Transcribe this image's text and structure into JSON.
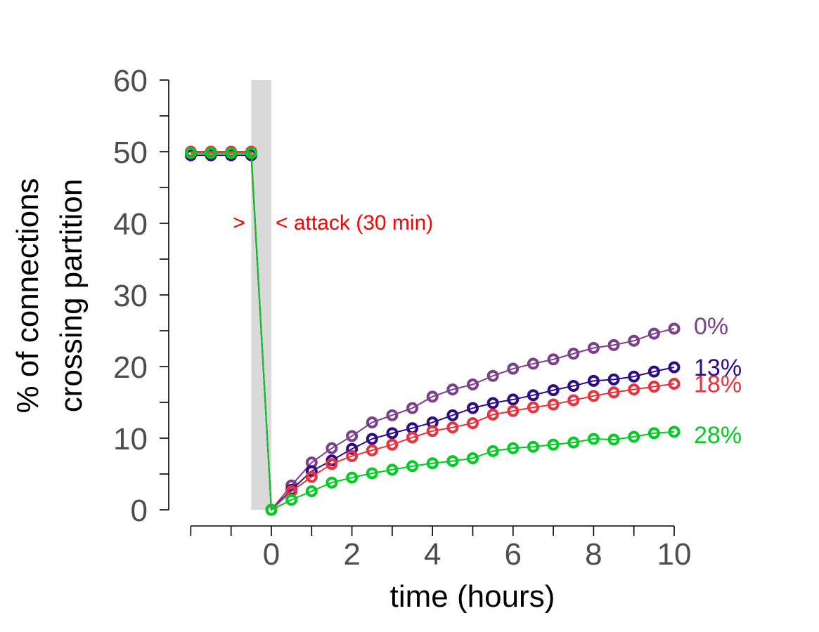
{
  "chart_data": {
    "type": "line",
    "title": "",
    "xlabel": "time (hours)",
    "ylabel_lines": [
      "% of connections",
      "crossing partition"
    ],
    "xlim": [
      -2,
      10
    ],
    "ylim": [
      0,
      60
    ],
    "x_ticks": [
      0,
      2,
      4,
      6,
      8,
      10
    ],
    "y_ticks": [
      0,
      10,
      20,
      30,
      40,
      50,
      60
    ],
    "grid": false,
    "legend": "none (series labelled at line ends)",
    "attack_window": {
      "x_start": -0.5,
      "x_end": 0,
      "color": "#d9d9d9"
    },
    "annotation": {
      "left_mark": ">",
      "text": "< attack (30 min)",
      "color": "#ff0000"
    },
    "x": [
      -2,
      -1.5,
      -1,
      -0.5,
      0,
      0.5,
      1,
      1.5,
      2,
      2.5,
      3,
      3.5,
      4,
      4.5,
      5,
      5.5,
      6,
      6.5,
      7,
      7.5,
      8,
      8.5,
      9,
      9.5,
      10
    ],
    "series": [
      {
        "name": "0%",
        "color": "#7b3f8c",
        "values": [
          49.8,
          49.8,
          49.8,
          49.8,
          0,
          3.4,
          6.6,
          8.6,
          10.3,
          12.2,
          13.2,
          14.2,
          15.8,
          16.8,
          17.5,
          18.7,
          19.7,
          20.4,
          21.0,
          21.8,
          22.6,
          23.0,
          23.6,
          24.6,
          25.3
        ]
      },
      {
        "name": "13%",
        "color": "#2e0a8a",
        "values": [
          49.5,
          49.5,
          49.5,
          49.5,
          0,
          2.8,
          5.4,
          6.9,
          8.5,
          9.9,
          10.7,
          11.4,
          12.2,
          13.2,
          14.2,
          14.9,
          15.4,
          16.0,
          16.7,
          17.3,
          18.0,
          18.2,
          18.6,
          19.3,
          19.9
        ]
      },
      {
        "name": "18%",
        "color": "#e8323c",
        "values": [
          50.0,
          50.0,
          50.0,
          50.0,
          0,
          2.6,
          4.6,
          6.4,
          7.5,
          8.3,
          9.1,
          10.1,
          11.0,
          11.5,
          12.1,
          13.3,
          13.8,
          14.3,
          14.7,
          15.3,
          15.9,
          16.4,
          16.8,
          17.2,
          17.6
        ]
      },
      {
        "name": "28%",
        "color": "#00cc22",
        "values": [
          49.8,
          49.8,
          49.8,
          49.8,
          0,
          1.4,
          2.6,
          3.8,
          4.5,
          5.1,
          5.6,
          6.1,
          6.5,
          6.8,
          7.2,
          8.2,
          8.6,
          8.8,
          9.1,
          9.4,
          9.9,
          9.8,
          10.2,
          10.7,
          10.9
        ]
      }
    ]
  }
}
